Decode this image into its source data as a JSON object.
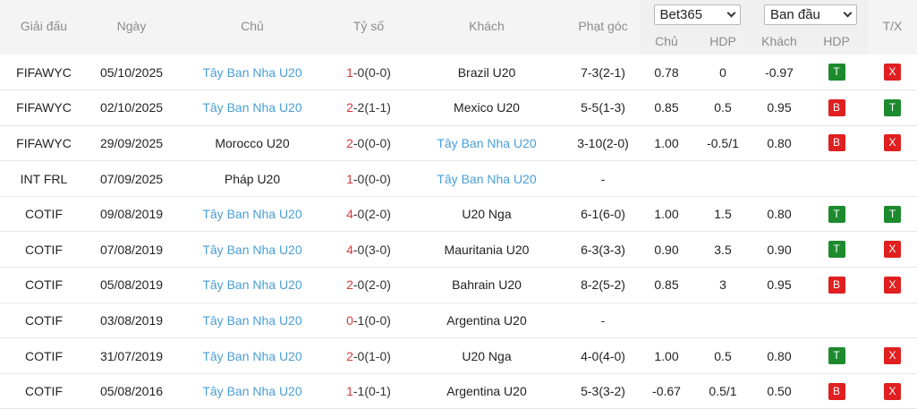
{
  "header": {
    "league": "Giải đấu",
    "date": "Ngày",
    "home": "Chủ",
    "score": "Tỷ số",
    "away": "Khách",
    "corner": "Phạt góc",
    "bookmaker_select": "Bet365",
    "type_select": "Ban đầu",
    "tx": "T/X",
    "odds_cols": [
      "Chủ",
      "HDP",
      "Khách",
      "HDP"
    ]
  },
  "colors": {
    "team_highlight": "#4a9ed6",
    "home_score": "#d33b3b",
    "badge_green": "#1e8a2e",
    "badge_red": "#e02020"
  },
  "rows": [
    {
      "league": "FIFAWYC",
      "date": "05/10/2025",
      "home": "Tây Ban Nha U20",
      "score_h": "1",
      "score_rest": "-0(0-0)",
      "away": "Brazil U20",
      "corner": "7-3(2-1)",
      "o1": "0.78",
      "o2": "0",
      "o3": "-0.97",
      "r1": "T",
      "r2": "X"
    },
    {
      "league": "FIFAWYC",
      "date": "02/10/2025",
      "home": "Tây Ban Nha U20",
      "score_h": "2",
      "score_rest": "-2(1-1)",
      "away": "Mexico U20",
      "corner": "5-5(1-3)",
      "o1": "0.85",
      "o2": "0.5",
      "o3": "0.95",
      "r1": "B",
      "r2": "T"
    },
    {
      "league": "FIFAWYC",
      "date": "29/09/2025",
      "home": "Morocco U20",
      "score_h": "2",
      "score_rest": "-0(0-0)",
      "away": "Tây Ban Nha U20",
      "corner": "3-10(2-0)",
      "o1": "1.00",
      "o2": "-0.5/1",
      "o3": "0.80",
      "r1": "B",
      "r2": "X"
    },
    {
      "league": "INT FRL",
      "date": "07/09/2025",
      "home": "Pháp U20",
      "score_h": "1",
      "score_rest": "-0(0-0)",
      "away": "Tây Ban Nha U20",
      "corner": "-",
      "o1": "",
      "o2": "",
      "o3": "",
      "r1": "",
      "r2": ""
    },
    {
      "league": "COTIF",
      "date": "09/08/2019",
      "home": "Tây Ban Nha U20",
      "score_h": "4",
      "score_rest": "-0(2-0)",
      "away": "U20 Nga",
      "corner": "6-1(6-0)",
      "o1": "1.00",
      "o2": "1.5",
      "o3": "0.80",
      "r1": "T",
      "r2": "T"
    },
    {
      "league": "COTIF",
      "date": "07/08/2019",
      "home": "Tây Ban Nha U20",
      "score_h": "4",
      "score_rest": "-0(3-0)",
      "away": "Mauritania U20",
      "corner": "6-3(3-3)",
      "o1": "0.90",
      "o2": "3.5",
      "o3": "0.90",
      "r1": "T",
      "r2": "X"
    },
    {
      "league": "COTIF",
      "date": "05/08/2019",
      "home": "Tây Ban Nha U20",
      "score_h": "2",
      "score_rest": "-0(2-0)",
      "away": "Bahrain U20",
      "corner": "8-2(5-2)",
      "o1": "0.85",
      "o2": "3",
      "o3": "0.95",
      "r1": "B",
      "r2": "X"
    },
    {
      "league": "COTIF",
      "date": "03/08/2019",
      "home": "Tây Ban Nha U20",
      "score_h": "0",
      "score_rest": "-1(0-0)",
      "away": "Argentina U20",
      "corner": "-",
      "o1": "",
      "o2": "",
      "o3": "",
      "r1": "",
      "r2": ""
    },
    {
      "league": "COTIF",
      "date": "31/07/2019",
      "home": "Tây Ban Nha U20",
      "score_h": "2",
      "score_rest": "-0(1-0)",
      "away": "U20 Nga",
      "corner": "4-0(4-0)",
      "o1": "1.00",
      "o2": "0.5",
      "o3": "0.80",
      "r1": "T",
      "r2": "X"
    },
    {
      "league": "COTIF",
      "date": "05/08/2016",
      "home": "Tây Ban Nha U20",
      "score_h": "1",
      "score_rest": "-1(0-1)",
      "away": "Argentina U20",
      "corner": "5-3(3-2)",
      "o1": "-0.67",
      "o2": "0.5/1",
      "o3": "0.50",
      "r1": "B",
      "r2": "X"
    }
  ]
}
